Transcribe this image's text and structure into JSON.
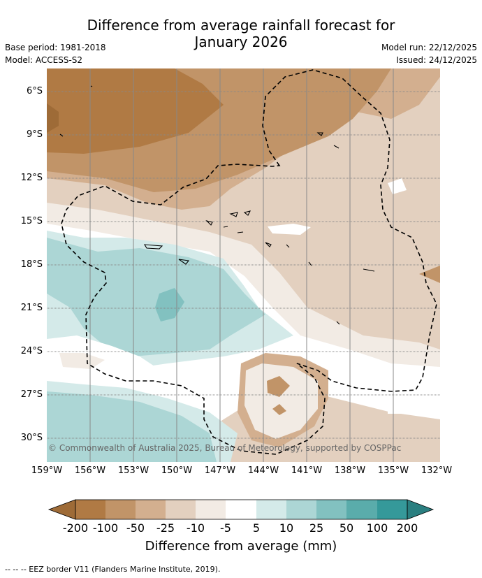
{
  "title": {
    "line1": "Difference from average rainfall forecast for",
    "line2": "January 2026"
  },
  "meta": {
    "base_period": "Base period: 1981-2018",
    "model": "Model: ACCESS-S2",
    "model_run": "Model run: 22/12/2025",
    "issued": "Issued: 24/12/2025"
  },
  "map": {
    "lat_labels": [
      "6°S",
      "9°S",
      "12°S",
      "15°S",
      "18°S",
      "21°S",
      "24°S",
      "27°S",
      "30°S"
    ],
    "lon_labels": [
      "159°W",
      "156°W",
      "153°W",
      "150°W",
      "147°W",
      "144°W",
      "141°W",
      "138°W",
      "135°W",
      "132°W"
    ],
    "copyright": "© Commonwealth of Australia 2025, Bureau of Meteorology, supported by COSPPac"
  },
  "legend": {
    "ticks": [
      "-200",
      "-100",
      "-50",
      "-25",
      "-10",
      "-5",
      "5",
      "10",
      "25",
      "50",
      "100",
      "200"
    ],
    "colors": [
      "#9e6b37",
      "#b07a44",
      "#c19468",
      "#d3af8f",
      "#e3d0bf",
      "#f2ebe4",
      "#ffffff",
      "#d4eae9",
      "#acd6d5",
      "#82c1c0",
      "#5aacab",
      "#35999a",
      "#2a7f80"
    ],
    "title": "Difference from average (mm)"
  },
  "footnote": "--  --  -- EEZ border V11 (Flanders Marine Institute, 2019)."
}
